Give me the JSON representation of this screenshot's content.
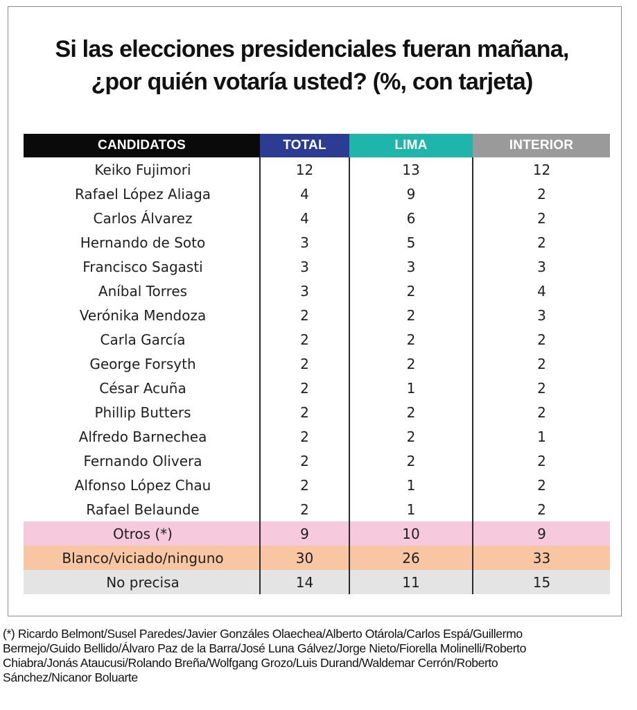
{
  "title": {
    "line1": "Si las elecciones presidenciales fueran mañana,",
    "line2": "¿por quién votaría usted? (%, con tarjeta)"
  },
  "colors": {
    "total_header": "#2d3c93",
    "lima_header": "#1fb5aa",
    "interior_header": "#9a9a9a",
    "candidatos_header": "#0a0a0a",
    "otros_row": "#f7c9dd",
    "blanco_row": "#f9c6a3",
    "no_precisa_row": "#e4e4e4"
  },
  "chart_data": {
    "type": "table",
    "columns": [
      "CANDIDATOS",
      "TOTAL",
      "LIMA",
      "INTERIOR"
    ],
    "rows": [
      {
        "name": "Keiko Fujimori",
        "total": "12",
        "lima": "13",
        "interior": "12"
      },
      {
        "name": "Rafael López Aliaga",
        "total": "4",
        "lima": "9",
        "interior": "2"
      },
      {
        "name": "Carlos Álvarez",
        "total": "4",
        "lima": "6",
        "interior": "2"
      },
      {
        "name": "Hernando de Soto",
        "total": "3",
        "lima": "5",
        "interior": "2"
      },
      {
        "name": "Francisco Sagasti",
        "total": "3",
        "lima": "3",
        "interior": "3"
      },
      {
        "name": "Aníbal Torres",
        "total": "3",
        "lima": "2",
        "interior": "4"
      },
      {
        "name": "Verónika Mendoza",
        "total": "2",
        "lima": "2",
        "interior": "3"
      },
      {
        "name": "Carla García",
        "total": "2",
        "lima": "2",
        "interior": "2"
      },
      {
        "name": "George Forsyth",
        "total": "2",
        "lima": "2",
        "interior": "2"
      },
      {
        "name": "César Acuña",
        "total": "2",
        "lima": "1",
        "interior": "2"
      },
      {
        "name": "Phillip Butters",
        "total": "2",
        "lima": "2",
        "interior": "2"
      },
      {
        "name": "Alfredo Barnechea",
        "total": "2",
        "lima": "2",
        "interior": "1"
      },
      {
        "name": "Fernando Olivera",
        "total": "2",
        "lima": "2",
        "interior": "2"
      },
      {
        "name": "Alfonso López Chau",
        "total": "2",
        "lima": "1",
        "interior": "2"
      },
      {
        "name": "Rafael Belaunde",
        "total": "2",
        "lima": "1",
        "interior": "2"
      },
      {
        "name": "Otros (*)",
        "total": "9",
        "lima": "10",
        "interior": "9"
      },
      {
        "name": "Blanco/viciado/ninguno",
        "total": "30",
        "lima": "26",
        "interior": "33"
      },
      {
        "name": "No precisa",
        "total": "14",
        "lima": "11",
        "interior": "15"
      }
    ]
  },
  "footnote": {
    "line1": "(*) Ricardo Belmont/Susel Paredes/Javier Gonzáles Olaechea/Alberto Otárola/Carlos Espá/Guillermo",
    "line2": "Bermejo/Guido Bellido/Álvaro Paz de la Barra/José Luna Gálvez/Jorge Nieto/Fiorella Molinelli/Roberto",
    "line3": "Chiabra/Jonás Ataucusi/Rolando Breña/Wolfgang Grozo/Luis Durand/Waldemar Cerrón/Roberto",
    "line4": "Sánchez/Nicanor Boluarte"
  }
}
